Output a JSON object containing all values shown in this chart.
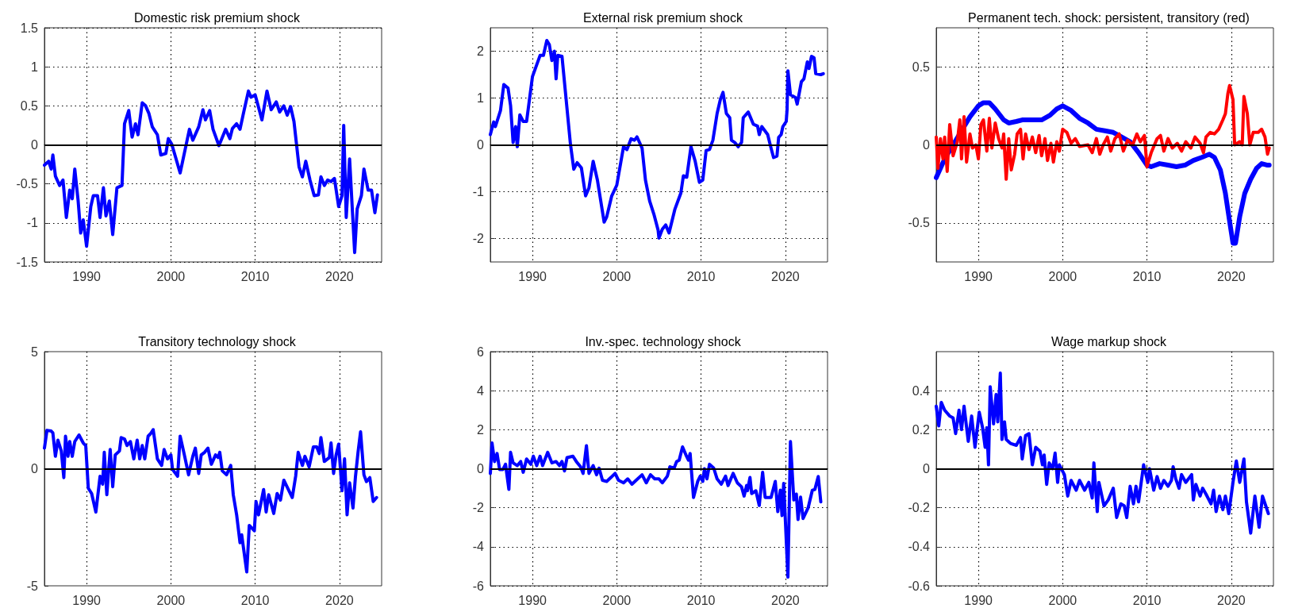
{
  "chart_data": [
    {
      "type": "line",
      "title": "Domestic risk premium shock",
      "xlim": [
        1985,
        2025
      ],
      "xticks": [
        1990,
        2000,
        2010,
        2020
      ],
      "ylim": [
        -1.5,
        1.5
      ],
      "yticks": [
        -1.5,
        -1,
        -0.5,
        0,
        0.5,
        1,
        1.5
      ],
      "grid": true,
      "ref_lines": [
        {
          "axis": "y",
          "value": 0,
          "color": "#000000"
        }
      ],
      "series": [
        {
          "color": "#0000ff",
          "x": [
            1985,
            1985.5,
            1985.8,
            1986,
            1986.3,
            1986.8,
            1987.2,
            1987.6,
            1988,
            1988.3,
            1988.6,
            1989,
            1989.3,
            1989.6,
            1990,
            1990.5,
            1990.8,
            1991.3,
            1991.6,
            1992,
            1992.3,
            1992.7,
            1993.1,
            1993.6,
            1994.2,
            1994.5,
            1995,
            1995.4,
            1995.8,
            1996.1,
            1996.6,
            1997,
            1997.4,
            1997.8,
            1998.4,
            1998.8,
            1999.4,
            1999.7,
            2000.1,
            2001.1,
            2002.2,
            2002.6,
            2003.3,
            2003.8,
            2004.1,
            2004.6,
            2005,
            2005.7,
            2006.5,
            2007,
            2007.3,
            2007.8,
            2008.2,
            2008.6,
            2009.2,
            2009.5,
            2010,
            2010.8,
            2011.4,
            2011.9,
            2012.5,
            2012.9,
            2013.4,
            2013.8,
            2014.2,
            2014.6,
            2015.2,
            2015.6,
            2016,
            2016.5,
            2017,
            2017.5,
            2017.8,
            2018.2,
            2018.6,
            2019,
            2019.4,
            2019.9,
            2020.3,
            2020.5,
            2020.8,
            2021.2,
            2021.8,
            2022.1,
            2022.6,
            2022.9,
            2023.4,
            2023.8,
            2024.2,
            2024.5
          ],
          "values": [
            -0.26,
            -0.21,
            -0.31,
            -0.13,
            -0.4,
            -0.52,
            -0.45,
            -0.93,
            -0.58,
            -0.69,
            -0.31,
            -0.72,
            -1.13,
            -0.96,
            -1.3,
            -0.79,
            -0.65,
            -0.65,
            -0.93,
            -0.55,
            -0.91,
            -0.72,
            -1.15,
            -0.55,
            -0.52,
            0.27,
            0.44,
            0.1,
            0.27,
            0.13,
            0.54,
            0.5,
            0.4,
            0.23,
            0.13,
            -0.13,
            -0.11,
            0.08,
            0.01,
            -0.36,
            0.2,
            0.06,
            0.23,
            0.45,
            0.32,
            0.44,
            0.2,
            -0.01,
            0.2,
            0.08,
            0.21,
            0.27,
            0.2,
            0.4,
            0.69,
            0.61,
            0.64,
            0.32,
            0.69,
            0.45,
            0.55,
            0.42,
            0.5,
            0.38,
            0.49,
            0.3,
            -0.28,
            -0.41,
            -0.21,
            -0.45,
            -0.65,
            -0.64,
            -0.41,
            -0.52,
            -0.45,
            -0.47,
            -0.43,
            -0.79,
            -0.65,
            0.25,
            -0.93,
            -0.18,
            -1.38,
            -0.82,
            -0.65,
            -0.31,
            -0.58,
            -0.58,
            -0.87,
            -0.64
          ]
        }
      ]
    },
    {
      "type": "line",
      "title": "External risk premium shock",
      "xlim": [
        1985,
        2025
      ],
      "xticks": [
        1990,
        2000,
        2010,
        2020
      ],
      "ylim": [
        -2.5,
        2.5
      ],
      "yticks": [
        -2,
        -1,
        0,
        1,
        2
      ],
      "grid": true,
      "ref_lines": [
        {
          "axis": "y",
          "value": 0,
          "color": "#000000"
        }
      ],
      "series": [
        {
          "color": "#0000ff",
          "x": [
            1985,
            1985.4,
            1985.6,
            1986.2,
            1986.6,
            1987.1,
            1987.4,
            1987.7,
            1988,
            1988.2,
            1988.5,
            1988.9,
            1989.3,
            1990,
            1990.9,
            1991.3,
            1991.7,
            1992,
            1992.3,
            1992.6,
            1992.8,
            1993,
            1993.5,
            1994.5,
            1994.9,
            1995.3,
            1995.8,
            1996.3,
            1996.7,
            1997.2,
            1997.7,
            1998.5,
            1998.8,
            1999.4,
            2000,
            2000.8,
            2001.2,
            2001.7,
            2002.1,
            2002.4,
            2003,
            2003.4,
            2003.9,
            2004.4,
            2004.9,
            2005,
            2005.4,
            2005.8,
            2006.2,
            2006.9,
            2007.6,
            2007.9,
            2008.3,
            2008.8,
            2009.3,
            2009.8,
            2010.2,
            2010.6,
            2011,
            2011.4,
            2011.9,
            2012.3,
            2012.6,
            2013,
            2013.4,
            2013.6,
            2014,
            2014.4,
            2014.8,
            2015,
            2015.6,
            2016.2,
            2016.7,
            2016.9,
            2017.2,
            2017.9,
            2018.3,
            2018.6,
            2019,
            2019.2,
            2019.5,
            2019.7,
            2020.1,
            2020.2,
            2020.3,
            2020.6,
            2021.2,
            2021.4,
            2021.9,
            2022.2,
            2022.6,
            2022.8,
            2023.1,
            2023.4,
            2023.6,
            2024.2,
            2024.5
          ],
          "values": [
            0.22,
            0.49,
            0.39,
            0.73,
            1.29,
            1.21,
            0.84,
            0.05,
            0.39,
            -0.04,
            0.64,
            0.5,
            0.5,
            1.46,
            1.91,
            1.91,
            2.23,
            2.14,
            1.8,
            2,
            1.41,
            1.91,
            1.89,
            0.02,
            -0.52,
            -0.38,
            -0.49,
            -1.09,
            -0.92,
            -0.35,
            -0.75,
            -1.65,
            -1.54,
            -1.09,
            -0.86,
            -0.04,
            -0.1,
            0.13,
            0.1,
            0.17,
            -0.07,
            -0.75,
            -1.2,
            -1.48,
            -1.82,
            -1.99,
            -1.8,
            -1.71,
            -1.88,
            -1.37,
            -1.03,
            -0.66,
            -0.69,
            -0.04,
            -0.35,
            -0.8,
            -0.75,
            -0.12,
            -0.1,
            0.1,
            0.67,
            0.98,
            1.12,
            0.67,
            0.58,
            0.1,
            0.05,
            -0.04,
            0.05,
            0.58,
            0.7,
            0.44,
            0.4,
            0.22,
            0.39,
            0.22,
            -0.07,
            -0.27,
            -0.24,
            0.16,
            0.22,
            0.39,
            0.5,
            0.75,
            1.58,
            1.07,
            1.01,
            0.87,
            1.35,
            1.41,
            1.77,
            1.63,
            1.89,
            1.86,
            1.52,
            1.5,
            1.52
          ]
        }
      ]
    },
    {
      "type": "line",
      "title": "Permanent tech. shock: persistent, transitory (red)",
      "xlim": [
        1985,
        2025
      ],
      "xticks": [
        1990,
        2000,
        2010,
        2020
      ],
      "ylim": [
        -0.75,
        0.75
      ],
      "yticks": [
        -0.5,
        0,
        0.5
      ],
      "grid": true,
      "ref_lines": [
        {
          "axis": "y",
          "value": 0,
          "color": "#000000"
        }
      ],
      "series": [
        {
          "color": "#0000ff",
          "x": [
            1985,
            1986,
            1987,
            1988,
            1989,
            1990,
            1990.6,
            1991.3,
            1992,
            1993,
            1993.6,
            1994.5,
            1995.2,
            1996.5,
            1997.5,
            1998.5,
            1999.3,
            2000,
            2001,
            2002,
            2003,
            2004,
            2005,
            2006,
            2007,
            2008,
            2009,
            2010,
            2010.5,
            2011.5,
            2012.5,
            2013.5,
            2014.5,
            2015.5,
            2016.5,
            2017.4,
            2018,
            2018.7,
            2019.3,
            2019.8,
            2020.2,
            2020.5,
            2021,
            2021.6,
            2022.3,
            2023,
            2023.6,
            2024.3,
            2024.5
          ],
          "values": [
            -0.21,
            -0.09,
            0,
            0.09,
            0.18,
            0.25,
            0.27,
            0.27,
            0.23,
            0.16,
            0.14,
            0.15,
            0.16,
            0.16,
            0.16,
            0.19,
            0.23,
            0.25,
            0.22,
            0.17,
            0.14,
            0.1,
            0.09,
            0.08,
            0.05,
            0.02,
            -0.05,
            -0.13,
            -0.14,
            -0.12,
            -0.13,
            -0.14,
            -0.13,
            -0.1,
            -0.08,
            -0.06,
            -0.08,
            -0.16,
            -0.31,
            -0.49,
            -0.63,
            -0.63,
            -0.46,
            -0.31,
            -0.22,
            -0.15,
            -0.12,
            -0.13,
            -0.13
          ]
        },
        {
          "color": "#ff0000",
          "x": [
            1985,
            1985.2,
            1985.5,
            1985.8,
            1986,
            1986.3,
            1986.6,
            1987,
            1987.5,
            1987.8,
            1988,
            1988.3,
            1988.6,
            1989,
            1989.3,
            1989.7,
            1990,
            1990.3,
            1990.6,
            1991,
            1991.3,
            1991.6,
            1992,
            1992.4,
            1992.8,
            1993,
            1993.3,
            1993.6,
            1993.9,
            1994.3,
            1994.6,
            1995,
            1995.3,
            1995.6,
            1996,
            1996.4,
            1996.8,
            1997.2,
            1997.5,
            1997.9,
            1998.2,
            1998.6,
            1998.9,
            1999.3,
            1999.6,
            2000,
            2000.5,
            2001,
            2001.5,
            2002,
            2003,
            2003.5,
            2004,
            2004.4,
            2004.8,
            2005.3,
            2005.7,
            2006.2,
            2006.7,
            2007.2,
            2007.7,
            2008.3,
            2008.8,
            2009.2,
            2009.7,
            2010,
            2010.5,
            2011.2,
            2011.6,
            2012,
            2012.5,
            2013,
            2013.6,
            2014.1,
            2014.6,
            2015.2,
            2015.7,
            2016.3,
            2016.7,
            2017,
            2017.5,
            2018,
            2018.5,
            2019,
            2019.3,
            2019.6,
            2019.8,
            2020.2,
            2020.4,
            2021,
            2021.3,
            2021.5,
            2021.9,
            2022.2,
            2022.6,
            2023.2,
            2023.6,
            2024,
            2024.3,
            2024.5
          ],
          "values": [
            0.05,
            -0.15,
            0.04,
            -0.09,
            0.05,
            -0.17,
            0.13,
            -0.07,
            0.02,
            0.16,
            -0.09,
            0.18,
            -0.11,
            0.07,
            -0.02,
            0,
            -0.09,
            0.13,
            0.16,
            -0.04,
            0.17,
            -0.02,
            0.14,
            0.04,
            -0.02,
            0.07,
            -0.22,
            0.04,
            -0.16,
            -0.06,
            0.07,
            0.1,
            -0.09,
            0.07,
            -0.03,
            0.05,
            -0.05,
            0.06,
            -0.07,
            0.04,
            -0.1,
            0.01,
            -0.11,
            0.02,
            -0.04,
            0.1,
            0.08,
            0.01,
            0.04,
            -0.01,
            0,
            -0.05,
            0.04,
            -0.06,
            0,
            0.05,
            -0.04,
            0.04,
            0.07,
            -0.04,
            0.03,
            0,
            0.07,
            0.02,
            0.06,
            -0.14,
            -0.05,
            0.04,
            0.06,
            -0.04,
            0.04,
            -0.02,
            0.01,
            -0.04,
            0.02,
            -0.02,
            0.05,
            0.01,
            -0.05,
            0.05,
            0.08,
            0.07,
            0.1,
            0.16,
            0.2,
            0.33,
            0.38,
            0.29,
            0,
            0.02,
            0,
            0.31,
            0.2,
            0,
            0.08,
            0.08,
            0.1,
            0.05,
            -0.06,
            -0.02
          ]
        }
      ]
    },
    {
      "type": "line",
      "title": "Transitory technology shock",
      "xlim": [
        1985,
        2025
      ],
      "xticks": [
        1990,
        2000,
        2010,
        2020
      ],
      "ylim": [
        -5,
        5
      ],
      "yticks": [
        -5,
        0,
        5
      ],
      "grid": "x",
      "ref_lines": [
        {
          "axis": "y",
          "value": 0,
          "color": "#000000"
        }
      ],
      "series": [
        {
          "color": "#0000ff",
          "x": [
            1985,
            1985.3,
            1985.8,
            1986,
            1986.3,
            1986.6,
            1987,
            1987.3,
            1987.5,
            1987.8,
            1988,
            1988.3,
            1988.6,
            1989.1,
            1989.6,
            1989.9,
            1990.2,
            1990.6,
            1991.1,
            1991.6,
            1991.9,
            1992.1,
            1992.4,
            1992.8,
            1993.1,
            1993.4,
            1993.9,
            1994.1,
            1994.5,
            1994.8,
            1995.2,
            1995.6,
            1996,
            1996.3,
            1996.6,
            1996.9,
            1997.3,
            1997.6,
            1997.9,
            1998.4,
            1998.9,
            1999.2,
            1999.6,
            2000,
            2000.2,
            2000.8,
            2001.1,
            2001.6,
            2002.1,
            2002.6,
            2002.9,
            2003.3,
            2003.6,
            2004,
            2004.4,
            2004.8,
            2005.3,
            2005.6,
            2005.8,
            2006.1,
            2006.6,
            2007.1,
            2007.4,
            2007.8,
            2008.2,
            2008.4,
            2009,
            2009.3,
            2009.9,
            2010.1,
            2010.4,
            2011,
            2011.3,
            2011.6,
            2012.2,
            2012.6,
            2013,
            2013.4,
            2014,
            2014.4,
            2014.8,
            2015.1,
            2015.6,
            2015.9,
            2016.4,
            2016.9,
            2017.3,
            2017.6,
            2017.8,
            2018.2,
            2018.8,
            2019,
            2019.3,
            2019.6,
            2019.9,
            2020.3,
            2020.6,
            2020.9,
            2021.2,
            2021.6,
            2021.9,
            2022.2,
            2022.5,
            2022.9,
            2023.2,
            2023.6,
            2024,
            2024.4
          ],
          "values": [
            0.88,
            1.64,
            1.61,
            1.53,
            0.53,
            1.22,
            0.76,
            -0.38,
            1.39,
            0.53,
            1.16,
            0.53,
            1.16,
            1.44,
            1.1,
            0.99,
            -0.83,
            -1.06,
            -1.85,
            -0.32,
            -0.66,
            0.7,
            -1.11,
            0.82,
            -0.77,
            0.59,
            0.76,
            1.33,
            1.27,
            0.99,
            1.16,
            0.42,
            1.22,
            0.42,
            0.99,
            0.42,
            1.39,
            1.5,
            1.67,
            0.42,
            0.14,
            0.82,
            0.42,
            0.59,
            -0.03,
            -0.32,
            1.39,
            0.59,
            -0.26,
            0.53,
            0.88,
            -0.2,
            0.59,
            0.7,
            0.88,
            0.19,
            0.59,
            0.48,
            0.7,
            -0.09,
            -0.26,
            0.14,
            -1.11,
            -1.97,
            -3.16,
            -2.82,
            -4.41,
            -2.42,
            -2.65,
            -1.4,
            -1.97,
            -0.89,
            -1.85,
            -1.11,
            -1.91,
            -1.06,
            -1.34,
            -0.49,
            -0.94,
            -1.23,
            -0.32,
            0.7,
            0.14,
            0.53,
            0.08,
            0.93,
            0.93,
            0.65,
            1.33,
            0.31,
            0.48,
            1.1,
            -0.2,
            0.59,
            1.05,
            -0.94,
            0.42,
            -1.97,
            -0.6,
            -1.68,
            -0.32,
            0.7,
            1.58,
            -0.26,
            -0.55,
            -0.38,
            -1.4,
            -1.23
          ]
        }
      ]
    },
    {
      "type": "line",
      "title": "Inv.-spec. technology shock",
      "xlim": [
        1985,
        2025
      ],
      "xticks": [
        1990,
        2000,
        2010,
        2020
      ],
      "ylim": [
        -6,
        6
      ],
      "yticks": [
        -6,
        -4,
        -2,
        0,
        2,
        4,
        6
      ],
      "grid": true,
      "ref_lines": [
        {
          "axis": "y",
          "value": 0,
          "color": "#000000"
        }
      ],
      "series": [
        {
          "color": "#0000ff",
          "x": [
            1985,
            1985.2,
            1985.5,
            1985.8,
            1986.1,
            1986.5,
            1986.8,
            1987.2,
            1987.4,
            1987.7,
            1988.2,
            1988.6,
            1988.9,
            1989.3,
            1989.8,
            1990.1,
            1990.5,
            1990.9,
            1991.2,
            1991.8,
            1992.3,
            1992.8,
            1993.2,
            1993.5,
            1993.8,
            1994.1,
            1994.8,
            1995.2,
            1995.7,
            1996,
            1996.4,
            1996.7,
            1997.2,
            1997.6,
            1997.9,
            1998.3,
            1998.8,
            1999.3,
            1999.8,
            2000.2,
            2000.8,
            2001.3,
            2001.8,
            2002.3,
            2003,
            2003.5,
            2004,
            2004.5,
            2005,
            2005.4,
            2006,
            2006.3,
            2006.8,
            2007.1,
            2007.4,
            2007.8,
            2008.2,
            2008.5,
            2008.7,
            2009.1,
            2009.6,
            2009.9,
            2010.2,
            2010.4,
            2010.7,
            2011,
            2011.5,
            2011.9,
            2012.4,
            2012.9,
            2013.2,
            2013.8,
            2014.3,
            2014.8,
            2015.1,
            2015.4,
            2015.5,
            2015.8,
            2016,
            2016.5,
            2016.9,
            2017.3,
            2017.6,
            2018.3,
            2018.8,
            2019.1,
            2019.4,
            2019.6,
            2019.8,
            2020.3,
            2020.6,
            2021,
            2021.3,
            2021.5,
            2021.8,
            2022.1,
            2022.7,
            2023.2,
            2023.5,
            2023.9,
            2024.2
          ],
          "values": [
            -0.24,
            1.32,
            0.37,
            0.78,
            -0.04,
            -0.04,
            0.23,
            -1.06,
            0.84,
            0.3,
            0.16,
            0.37,
            -0.18,
            0.5,
            0.23,
            0.64,
            0.16,
            0.64,
            0.16,
            0.84,
            0.3,
            0.37,
            0.16,
            0.37,
            -0.11,
            0.57,
            0.64,
            0.37,
            0.1,
            -0.24,
            1.18,
            -0.24,
            0.16,
            -0.31,
            0.03,
            -0.59,
            -0.65,
            -0.45,
            -0.24,
            -0.59,
            -0.72,
            -0.52,
            -0.79,
            -0.59,
            -0.31,
            -0.72,
            -0.31,
            -0.52,
            -0.52,
            -0.72,
            -0.38,
            0.1,
            0.03,
            0.37,
            0.44,
            1.12,
            0.71,
            0.44,
            0.78,
            -1.47,
            -0.65,
            -0.38,
            -0.65,
            0,
            -0.52,
            0.23,
            0.03,
            -0.52,
            -0.79,
            -0.38,
            -0.86,
            -0.24,
            -0.72,
            -0.93,
            -1.4,
            -0.86,
            -1.13,
            -0.45,
            -1.27,
            -1.13,
            -1.88,
            -0.18,
            -1.47,
            -1.47,
            -0.65,
            -2.2,
            -1.1,
            -2.4,
            -0.75,
            -5.55,
            1.39,
            -1.6,
            -1.3,
            -2.6,
            -1.45,
            -2.55,
            -2,
            -1.1,
            -1.06,
            -0.4,
            -1.7
          ]
        }
      ]
    },
    {
      "type": "line",
      "title": "Wage markup shock",
      "xlim": [
        1985,
        2025
      ],
      "xticks": [
        1990,
        2000,
        2010,
        2020
      ],
      "ylim": [
        -0.6,
        0.6
      ],
      "yticks": [
        -0.6,
        -0.4,
        -0.2,
        0,
        0.2,
        0.4
      ],
      "grid": true,
      "ref_lines": [
        {
          "axis": "y",
          "value": 0,
          "color": "#000000"
        }
      ],
      "series": [
        {
          "color": "#0000ff",
          "x": [
            1985,
            1985.3,
            1985.6,
            1986,
            1986.6,
            1987,
            1987.3,
            1987.7,
            1988,
            1988.3,
            1988.8,
            1989.2,
            1989.6,
            1990.1,
            1990.5,
            1990.8,
            1991,
            1991.2,
            1991.4,
            1991.8,
            1992.1,
            1992.3,
            1992.6,
            1992.8,
            1993.1,
            1993.3,
            1993.8,
            1994.5,
            1995,
            1995.2,
            1995.6,
            1996,
            1996.4,
            1996.8,
            1997.3,
            1997.6,
            1997.8,
            1998.1,
            1998.4,
            1998.8,
            1999.1,
            1999.4,
            1999.6,
            2000.2,
            2000.6,
            2001,
            2001.6,
            2002,
            2002.6,
            2003.1,
            2003.5,
            2003.7,
            2004.1,
            2004.3,
            2004.9,
            2005.4,
            2006,
            2006.4,
            2006.9,
            2007.3,
            2007.6,
            2008,
            2008.4,
            2008.7,
            2009,
            2009.6,
            2010.1,
            2010.3,
            2010.8,
            2011.2,
            2011.6,
            2012,
            2012.5,
            2012.9,
            2013.1,
            2013.4,
            2013.8,
            2014.1,
            2014.6,
            2015.3,
            2015.5,
            2015.8,
            2016.3,
            2016.6,
            2017,
            2017.6,
            2017.9,
            2018.2,
            2018.6,
            2019,
            2019.3,
            2019.7,
            2020.2,
            2020.6,
            2021,
            2021.5,
            2021.8,
            2022.3,
            2022.8,
            2023.3,
            2023.7,
            2024.4
          ],
          "values": [
            0.32,
            0.22,
            0.34,
            0.3,
            0.27,
            0.26,
            0.18,
            0.3,
            0.2,
            0.32,
            0.14,
            0.27,
            0.11,
            0.29,
            0.21,
            0.11,
            0.21,
            0.02,
            0.42,
            0.23,
            0.38,
            0.24,
            0.49,
            0.15,
            0.24,
            0.15,
            0.13,
            0.12,
            0.16,
            0.05,
            0.17,
            0.18,
            0.02,
            0.11,
            0.09,
            0.02,
            0.07,
            -0.08,
            0.03,
            0,
            0.08,
            -0.07,
            0.02,
            -0.03,
            -0.14,
            -0.06,
            -0.11,
            -0.06,
            -0.11,
            -0.07,
            -0.15,
            0.03,
            -0.22,
            -0.07,
            -0.19,
            -0.16,
            -0.1,
            -0.25,
            -0.18,
            -0.19,
            -0.25,
            -0.09,
            -0.18,
            -0.09,
            -0.17,
            0.02,
            -0.07,
            0,
            -0.11,
            -0.04,
            -0.1,
            -0.06,
            -0.09,
            -0.06,
            0.01,
            -0.05,
            -0.1,
            -0.03,
            -0.07,
            -0.03,
            -0.16,
            -0.08,
            -0.14,
            -0.1,
            -0.13,
            -0.18,
            -0.11,
            -0.22,
            -0.14,
            -0.21,
            -0.14,
            -0.23,
            -0.07,
            0.04,
            -0.07,
            0.05,
            -0.17,
            -0.33,
            -0.14,
            -0.3,
            -0.14,
            -0.23
          ]
        }
      ]
    }
  ]
}
